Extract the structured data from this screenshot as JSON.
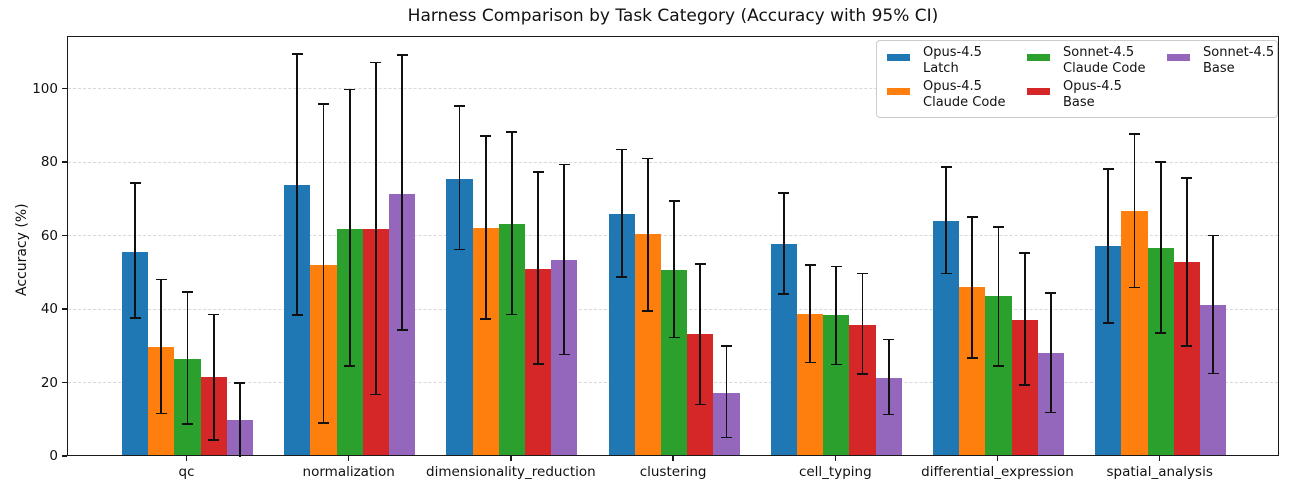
{
  "chart_data": {
    "type": "bar",
    "title": "Harness Comparison by Task Category (Accuracy with 95% CI)",
    "xlabel": "",
    "ylabel": "Accuracy (%)",
    "ylim": [
      0,
      114.3
    ],
    "yticks": [
      0,
      20,
      40,
      60,
      80,
      100
    ],
    "grid": true,
    "grid_style": "dashed",
    "legend_position": "upper right",
    "error_bar_color": "#111111",
    "background_color": "#ffffff",
    "categories": [
      "qc",
      "normalization",
      "dimensionality_reduction",
      "clustering",
      "cell_typing",
      "differential_expression",
      "spatial_analysis"
    ],
    "series": [
      {
        "name": "Opus-4.5 Latch",
        "label_lines": "Opus-4.5\nLatch",
        "color": "#1f77b4",
        "values": [
          55.8,
          74.0,
          75.7,
          66.2,
          57.9,
          64.2,
          57.4
        ],
        "ci_low": [
          37.9,
          38.6,
          56.5,
          49.0,
          44.3,
          49.9,
          36.5
        ],
        "ci_high": [
          74.5,
          109.6,
          95.5,
          83.7,
          71.9,
          78.9,
          78.4
        ]
      },
      {
        "name": "Opus-4.5 Claude Code",
        "label_lines": "Opus-4.5\nClaude Code",
        "color": "#ff7f0e",
        "values": [
          29.9,
          52.3,
          62.4,
          60.6,
          38.8,
          46.3,
          66.9
        ],
        "ci_low": [
          11.8,
          9.3,
          37.5,
          39.7,
          25.7,
          27.0,
          46.1
        ],
        "ci_high": [
          48.3,
          96.1,
          87.3,
          81.2,
          52.2,
          65.4,
          87.9
        ]
      },
      {
        "name": "Sonnet-4.5 Claude Code",
        "label_lines": "Sonnet-4.5\nClaude Code",
        "color": "#2ca02c",
        "values": [
          26.7,
          62.1,
          63.5,
          50.9,
          38.6,
          43.9,
          56.9
        ],
        "ci_low": [
          8.9,
          24.8,
          38.8,
          32.5,
          25.2,
          24.8,
          33.8
        ],
        "ci_high": [
          44.9,
          100.0,
          88.5,
          69.7,
          51.8,
          62.6,
          80.3
        ]
      },
      {
        "name": "Opus-4.5 Base",
        "label_lines": "Opus-4.5\nBase",
        "color": "#d62728",
        "values": [
          21.9,
          62.1,
          51.2,
          33.6,
          35.9,
          37.2,
          53.1
        ],
        "ci_low": [
          4.6,
          17.0,
          25.4,
          14.3,
          22.5,
          19.5,
          30.2
        ],
        "ci_high": [
          38.8,
          107.4,
          77.6,
          52.6,
          49.9,
          55.5,
          76.0
        ]
      },
      {
        "name": "Sonnet-4.5 Base",
        "label_lines": "Sonnet-4.5\nBase",
        "color": "#9467bd",
        "values": [
          10.1,
          71.5,
          53.5,
          17.3,
          21.4,
          28.4,
          41.4
        ],
        "ci_low": [
          0.0,
          34.5,
          27.9,
          5.3,
          11.6,
          12.1,
          22.7
        ],
        "ci_high": [
          20.2,
          109.4,
          79.6,
          30.2,
          32.0,
          44.7,
          60.3
        ]
      }
    ]
  }
}
